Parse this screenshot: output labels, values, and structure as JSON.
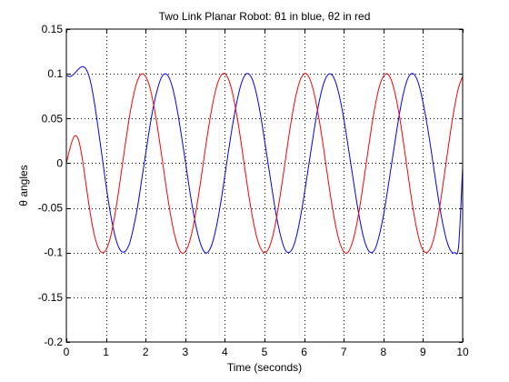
{
  "chart_data": {
    "type": "line",
    "title": "Two Link Planar Robot: θ1 in blue, θ2 in red",
    "xlabel": "Time (seconds)",
    "ylabel": "θ angles",
    "xlim": [
      0,
      10
    ],
    "ylim": [
      -0.2,
      0.15
    ],
    "xticks": [
      0,
      1,
      2,
      3,
      4,
      5,
      6,
      7,
      8,
      9,
      10
    ],
    "yticks": [
      -0.2,
      -0.15,
      -0.1,
      -0.05,
      0,
      0.05,
      0.1,
      0.15
    ],
    "xtick_labels": [
      "0",
      "1",
      "2",
      "3",
      "4",
      "5",
      "6",
      "7",
      "8",
      "9",
      "10"
    ],
    "ytick_labels": [
      "-0.2",
      "-0.15",
      "-0.1",
      "-0.05",
      "0",
      "0.05",
      "0.1",
      "0.15"
    ],
    "grid": true,
    "grid_style": "dotted",
    "series": [
      {
        "color": "#0000ff",
        "x": [
          0,
          0.1,
          0.2,
          0.3,
          0.4,
          0.5,
          0.6,
          0.7,
          0.8,
          0.9,
          1.0,
          1.1,
          1.2,
          1.3,
          1.4,
          1.5,
          1.6,
          1.7,
          1.8,
          1.9,
          2.0,
          2.1,
          2.2,
          2.3,
          2.4,
          2.5,
          2.6,
          2.7,
          2.8,
          2.9,
          3.0,
          3.1,
          3.2,
          3.3,
          3.4,
          3.5,
          3.6,
          3.7,
          3.8,
          3.9,
          4.0,
          4.1,
          4.2,
          4.3,
          4.4,
          4.5,
          4.6,
          4.7,
          4.8,
          4.9,
          5.0,
          5.1,
          5.2,
          5.3,
          5.4,
          5.5,
          5.6,
          5.7,
          5.8,
          5.9,
          6.0,
          6.1,
          6.2,
          6.3,
          6.4,
          6.5,
          6.6,
          6.7,
          6.8,
          6.9,
          7.0,
          7.1,
          7.2,
          7.3,
          7.4,
          7.5,
          7.6,
          7.7,
          7.8,
          7.9,
          8.0,
          8.1,
          8.2,
          8.3,
          8.4,
          8.5,
          8.6,
          8.7,
          8.8,
          8.9,
          9.0,
          9.1,
          9.2,
          9.3,
          9.4,
          9.5,
          9.6,
          9.7,
          9.8,
          9.9,
          10.0
        ],
        "y": [
          0.098,
          0.097,
          0.1,
          0.105,
          0.108,
          0.105,
          0.093,
          0.07,
          0.04,
          0.008,
          -0.024,
          -0.053,
          -0.076,
          -0.092,
          -0.099,
          -0.098,
          -0.089,
          -0.071,
          -0.048,
          -0.019,
          0.01,
          0.039,
          0.064,
          0.083,
          0.096,
          0.1,
          0.095,
          0.081,
          0.059,
          0.032,
          0.003,
          -0.027,
          -0.054,
          -0.076,
          -0.092,
          -0.1,
          -0.098,
          -0.087,
          -0.068,
          -0.043,
          -0.014,
          0.016,
          0.044,
          0.068,
          0.087,
          0.098,
          0.1,
          0.093,
          0.077,
          0.054,
          0.026,
          -0.003,
          -0.032,
          -0.059,
          -0.08,
          -0.095,
          -0.1,
          -0.096,
          -0.083,
          -0.062,
          -0.036,
          -0.007,
          0.022,
          0.05,
          0.073,
          0.09,
          0.099,
          0.099,
          0.09,
          0.073,
          0.05,
          0.022,
          -0.007,
          -0.036,
          -0.062,
          -0.083,
          -0.096,
          -0.1,
          -0.095,
          -0.08,
          -0.059,
          -0.032,
          -0.003,
          0.026,
          0.054,
          0.077,
          0.093,
          0.1,
          0.098,
          0.087,
          0.068,
          0.044,
          0.016,
          -0.014,
          -0.043,
          -0.068,
          -0.087,
          -0.098,
          -0.1,
          -0.092,
          -0.004
        ]
      },
      {
        "color": "#ff0000",
        "x": [
          0,
          0.1,
          0.2,
          0.3,
          0.4,
          0.5,
          0.6,
          0.7,
          0.8,
          0.9,
          1.0,
          1.1,
          1.2,
          1.3,
          1.4,
          1.5,
          1.6,
          1.7,
          1.8,
          1.9,
          2.0,
          2.1,
          2.2,
          2.3,
          2.4,
          2.5,
          2.6,
          2.7,
          2.8,
          2.9,
          3.0,
          3.1,
          3.2,
          3.3,
          3.4,
          3.5,
          3.6,
          3.7,
          3.8,
          3.9,
          4.0,
          4.1,
          4.2,
          4.3,
          4.4,
          4.5,
          4.6,
          4.7,
          4.8,
          4.9,
          5.0,
          5.1,
          5.2,
          5.3,
          5.4,
          5.5,
          5.6,
          5.7,
          5.8,
          5.9,
          6.0,
          6.1,
          6.2,
          6.3,
          6.4,
          6.5,
          6.6,
          6.7,
          6.8,
          6.9,
          7.0,
          7.1,
          7.2,
          7.3,
          7.4,
          7.5,
          7.6,
          7.7,
          7.8,
          7.9,
          8.0,
          8.1,
          8.2,
          8.3,
          8.4,
          8.5,
          8.6,
          8.7,
          8.8,
          8.9,
          9.0,
          9.1,
          9.2,
          9.3,
          9.4,
          9.5,
          9.6,
          9.7,
          9.8,
          9.9,
          10.0
        ],
        "y": [
          0.0,
          0.018,
          0.03,
          0.027,
          0.006,
          -0.025,
          -0.055,
          -0.079,
          -0.094,
          -0.1,
          -0.097,
          -0.085,
          -0.064,
          -0.037,
          -0.006,
          0.025,
          0.054,
          0.077,
          0.093,
          0.1,
          0.097,
          0.086,
          0.066,
          0.04,
          0.01,
          -0.021,
          -0.05,
          -0.074,
          -0.091,
          -0.1,
          -0.099,
          -0.089,
          -0.071,
          -0.046,
          -0.017,
          0.014,
          0.043,
          0.068,
          0.087,
          0.098,
          0.1,
          0.093,
          0.077,
          0.054,
          0.026,
          -0.005,
          -0.035,
          -0.061,
          -0.082,
          -0.095,
          -0.1,
          -0.096,
          -0.083,
          -0.062,
          -0.035,
          -0.005,
          0.026,
          0.054,
          0.077,
          0.093,
          0.1,
          0.098,
          0.087,
          0.068,
          0.043,
          0.014,
          -0.017,
          -0.046,
          -0.071,
          -0.089,
          -0.099,
          -0.1,
          -0.091,
          -0.074,
          -0.05,
          -0.021,
          0.01,
          0.04,
          0.066,
          0.086,
          0.097,
          0.1,
          0.093,
          0.077,
          0.054,
          0.025,
          -0.006,
          -0.037,
          -0.064,
          -0.085,
          -0.097,
          -0.1,
          -0.094,
          -0.079,
          -0.055,
          -0.025,
          0.006,
          0.037,
          0.064,
          0.085,
          0.097
        ]
      }
    ]
  }
}
